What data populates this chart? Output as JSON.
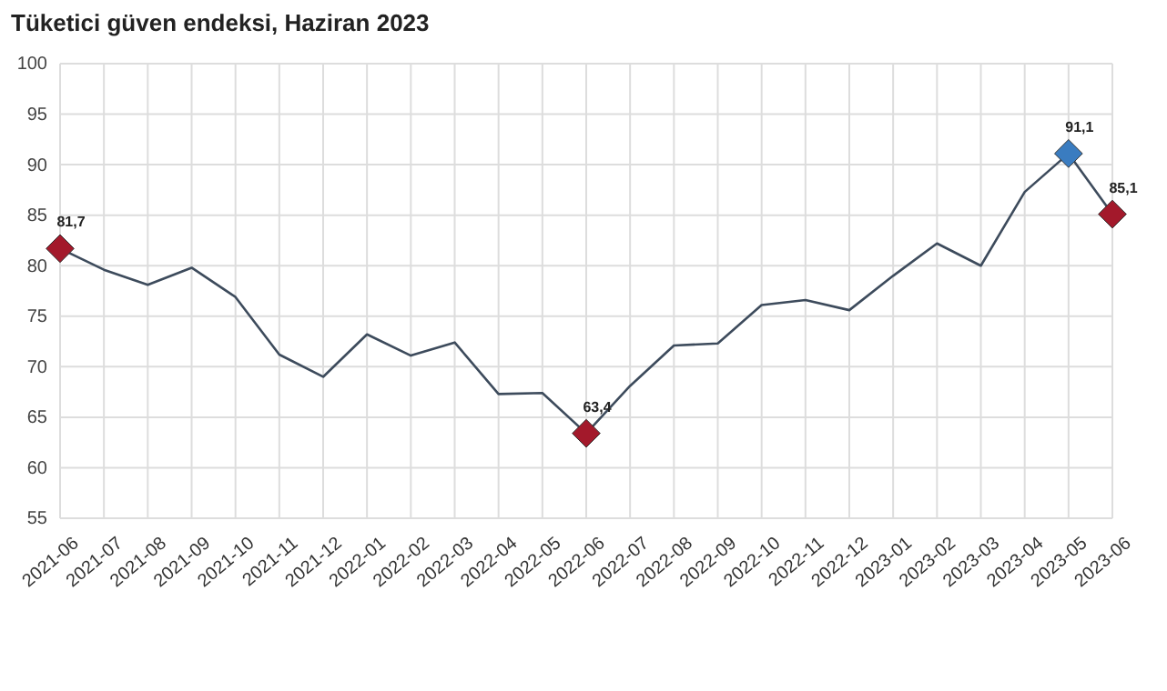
{
  "chart_data": {
    "type": "line",
    "title": "Tüketici güven endeksi, Haziran 2023",
    "categories": [
      "2021-06",
      "2021-07",
      "2021-08",
      "2021-09",
      "2021-10",
      "2021-11",
      "2021-12",
      "2022-01",
      "2022-02",
      "2022-03",
      "2022-04",
      "2022-05",
      "2022-06",
      "2022-07",
      "2022-08",
      "2022-09",
      "2022-10",
      "2022-11",
      "2022-12",
      "2023-01",
      "2023-02",
      "2023-03",
      "2023-04",
      "2023-05",
      "2023-06"
    ],
    "series": [
      {
        "color": "#3d4b5c",
        "marker": "none",
        "values": [
          81.7,
          79.6,
          78.1,
          79.8,
          76.9,
          71.2,
          69.0,
          73.2,
          71.1,
          72.4,
          67.3,
          67.4,
          63.4,
          68.1,
          72.1,
          72.3,
          76.1,
          76.6,
          75.6,
          79.0,
          82.2,
          80.0,
          87.3,
          91.1,
          85.1
        ]
      },
      {
        "type": "scatter",
        "marker": "diamond",
        "values": [
          81.7,
          null,
          null,
          null,
          null,
          null,
          null,
          null,
          null,
          null,
          null,
          null,
          63.4,
          null,
          null,
          null,
          null,
          null,
          null,
          null,
          null,
          null,
          null,
          91.1,
          85.1
        ],
        "colors": [
          "#a3192b",
          null,
          null,
          null,
          null,
          null,
          null,
          null,
          null,
          null,
          null,
          null,
          "#a3192b",
          null,
          null,
          null,
          null,
          null,
          null,
          null,
          null,
          null,
          null,
          "#3a7cc0",
          "#a3192b"
        ],
        "value_labels": [
          "81,7",
          null,
          null,
          null,
          null,
          null,
          null,
          null,
          null,
          null,
          null,
          null,
          "63,4",
          null,
          null,
          null,
          null,
          null,
          null,
          null,
          null,
          null,
          null,
          "91,1",
          "85,1"
        ]
      }
    ],
    "ylim": [
      55,
      100
    ],
    "yticks": [
      55,
      60,
      65,
      70,
      75,
      80,
      85,
      90,
      95,
      100
    ],
    "grid": true
  }
}
